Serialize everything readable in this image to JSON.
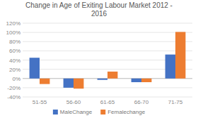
{
  "chart_data": {
    "type": "bar",
    "title": "Change in Age of Exiting Labour Market 2012 -\n2016",
    "categories": [
      "51-55",
      "56-60",
      "61-65",
      "66-70",
      "71-75"
    ],
    "series": [
      {
        "name": "MaleChange",
        "color": "#4472C4",
        "values": [
          45,
          -20,
          -3,
          -8,
          52
        ]
      },
      {
        "name": "Femalechange",
        "color": "#ED7D31",
        "values": [
          -12,
          -22,
          15,
          -8,
          101
        ]
      }
    ],
    "ylim": [
      -40,
      120
    ],
    "yticks": [
      {
        "value": -40,
        "label": "-40%"
      },
      {
        "value": -20,
        "label": "-20%"
      },
      {
        "value": 0,
        "label": "0%"
      },
      {
        "value": 20,
        "label": "20%"
      },
      {
        "value": 40,
        "label": "40%"
      },
      {
        "value": 60,
        "label": "60%"
      },
      {
        "value": 80,
        "label": "80%"
      },
      {
        "value": 100,
        "label": "100%"
      },
      {
        "value": 120,
        "label": "120%"
      }
    ],
    "grid": true,
    "legend": "bottom"
  }
}
